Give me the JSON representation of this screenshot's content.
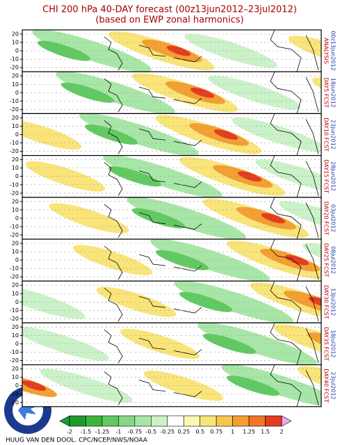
{
  "header": {
    "title": "CHI 200 hPa 40-DAY forecast (00z13jun2012–23jul2012)",
    "subtitle": "(based on EWP zonal harmonics)"
  },
  "yticks": [
    20,
    10,
    0,
    -10,
    -20
  ],
  "panels": [
    {
      "label": "ANALYSIS",
      "date": "00z13jun2012"
    },
    {
      "label": "DAY5 FCST",
      "date": "18jun2012"
    },
    {
      "label": "DAY10 FCST",
      "date": "23jun2012"
    },
    {
      "label": "DAY15 FCST",
      "date": "28jun2012"
    },
    {
      "label": "DAY20 FCST",
      "date": "03jul2012"
    },
    {
      "label": "DAY25 FCST",
      "date": "08jul2012"
    },
    {
      "label": "DAY30 FCST",
      "date": "13jul2012"
    },
    {
      "label": "DAY35 FCST",
      "date": "18jul2012"
    },
    {
      "label": "DAY40 FCST",
      "date": "23jul2012"
    }
  ],
  "colorbar": {
    "ticks": [
      -2,
      -1.5,
      -1.25,
      -1,
      -0.75,
      -0.5,
      -0.25,
      0.25,
      0.5,
      0.75,
      1,
      1.25,
      1.5,
      2
    ],
    "colors": [
      "#1f9a2e",
      "#3db53d",
      "#62c962",
      "#86d886",
      "#a8e6a8",
      "#cbf1c8",
      "#ffffff",
      "#fbf8b4",
      "#f9e47a",
      "#f5c650",
      "#f39f33",
      "#ef7629",
      "#e43c1e"
    ],
    "low_color": "#11a03a",
    "high_color": "#f3a4ee"
  },
  "footer": {
    "credit": "HUUG VAN DEN DOOL. CPC/NCEP/NWS/NOAA"
  }
}
